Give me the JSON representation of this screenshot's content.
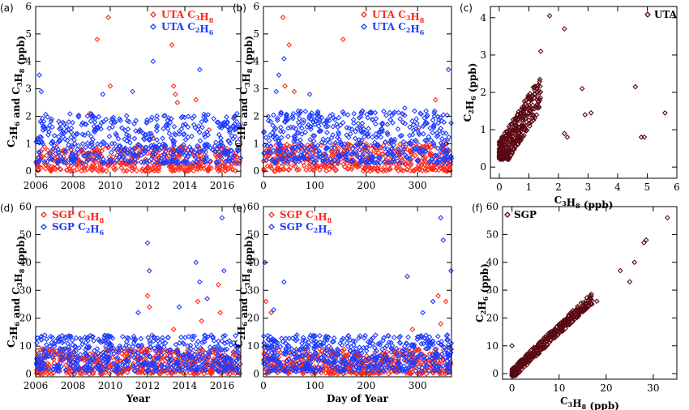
{
  "colors": {
    "c3h8": "#ff2a1a",
    "c2h6": "#1f3dff",
    "scatter": "#5a0a14",
    "axis": "#000000"
  },
  "chart_data": [
    {
      "panel": "(a)",
      "type": "scatter",
      "xlabel": "",
      "ylabel": "C2H6 and C3H8 (ppb)",
      "xlim": [
        2006,
        2017
      ],
      "ylim": [
        -0.2,
        6
      ],
      "xticks": [
        2006,
        2008,
        2010,
        2012,
        2014,
        2016
      ],
      "yticks": [
        0,
        1,
        2,
        3,
        4,
        5,
        6
      ],
      "legend": "top-right",
      "series": [
        {
          "name": "UTA C3H8",
          "color": "#ff2a1a",
          "ymin": 0,
          "ymax": 0.9,
          "count": 420,
          "outliers": [
            [
              2008.9,
              2.1
            ],
            [
              2009.3,
              4.8
            ],
            [
              2009.9,
              5.6
            ],
            [
              2010.0,
              3.1
            ],
            [
              2012.3,
              1.2
            ],
            [
              2013.3,
              4.6
            ],
            [
              2013.4,
              3.1
            ],
            [
              2013.5,
              2.8
            ],
            [
              2013.6,
              2.5
            ],
            [
              2014.6,
              2.6
            ],
            [
              2015.3,
              1.5
            ]
          ]
        },
        {
          "name": "UTA C2H6",
          "color": "#1f3dff",
          "ymin": 0.3,
          "ymax": 2.1,
          "count": 520,
          "outliers": [
            [
              2006.2,
              3.5
            ],
            [
              2006.3,
              2.9
            ],
            [
              2009.6,
              2.8
            ],
            [
              2011.2,
              2.9
            ],
            [
              2012.3,
              4.0
            ],
            [
              2014.8,
              3.7
            ],
            [
              2016.8,
              2.1
            ]
          ]
        }
      ]
    },
    {
      "panel": "(b)",
      "type": "scatter",
      "xlabel": "",
      "ylabel": "C2H6 and C3H8 (ppb)",
      "xlim": [
        0,
        366
      ],
      "ylim": [
        -0.2,
        6
      ],
      "xticks": [
        0,
        100,
        200,
        300
      ],
      "yticks": [
        0,
        1,
        2,
        3,
        4,
        5,
        6
      ],
      "legend": "top-right",
      "series": [
        {
          "name": "UTA C3H8",
          "color": "#ff2a1a",
          "ymin": 0,
          "ymax": 1.0,
          "count": 420,
          "outliers": [
            [
              38,
              5.6
            ],
            [
              50,
              4.6
            ],
            [
              155,
              4.8
            ],
            [
              42,
              3.1
            ],
            [
              60,
              2.9
            ],
            [
              270,
              2.1
            ],
            [
              335,
              2.6
            ],
            [
              300,
              1.5
            ]
          ]
        },
        {
          "name": "UTA C2H6",
          "color": "#1f3dff",
          "ymin": 0.3,
          "ymax": 2.2,
          "count": 520,
          "outliers": [
            [
              40,
              4.1
            ],
            [
              30,
              3.5
            ],
            [
              90,
              2.8
            ],
            [
              360,
              3.7
            ],
            [
              275,
              2.3
            ],
            [
              25,
              2.9
            ]
          ]
        }
      ]
    },
    {
      "panel": "(c)",
      "type": "scatter",
      "title": "UTA",
      "xlabel": "C3H8 (ppb)",
      "ylabel": "C2H6 (ppb)",
      "xlim": [
        -0.3,
        6
      ],
      "ylim": [
        -0.3,
        4.3
      ],
      "xticks": [
        0,
        1,
        2,
        3,
        4,
        5,
        6
      ],
      "yticks": [
        0,
        1,
        2,
        3,
        4
      ],
      "series": [
        {
          "name": "UTA",
          "color": "#5a0a14",
          "count": 360,
          "outliers": [
            [
              1.7,
              4.05
            ],
            [
              2.2,
              3.7
            ],
            [
              1.4,
              3.1
            ],
            [
              2.8,
              2.1
            ],
            [
              3.1,
              1.45
            ],
            [
              2.9,
              1.4
            ],
            [
              4.6,
              2.15
            ],
            [
              4.8,
              0.8
            ],
            [
              4.9,
              0.8
            ],
            [
              5.6,
              1.45
            ],
            [
              2.3,
              0.8
            ],
            [
              2.2,
              0.9
            ]
          ]
        }
      ]
    },
    {
      "panel": "(d)",
      "type": "scatter",
      "xlabel": "Year",
      "ylabel": "C2H6 and C3H8 (ppb)",
      "xlim": [
        2006,
        2017
      ],
      "ylim": [
        -1,
        60
      ],
      "xticks": [
        2006,
        2008,
        2010,
        2012,
        2014,
        2016
      ],
      "yticks": [
        0,
        10,
        20,
        30,
        40,
        50,
        60
      ],
      "legend": "top-left",
      "series": [
        {
          "name": "SGP C3H8",
          "color": "#ff2a1a",
          "ymin": 0,
          "ymax": 9,
          "count": 480,
          "outliers": [
            [
              2012.0,
              28
            ],
            [
              2012.1,
              24
            ],
            [
              2014.7,
              26
            ],
            [
              2014.9,
              19
            ],
            [
              2015.8,
              32
            ],
            [
              2015.9,
              22
            ],
            [
              2013.4,
              16
            ]
          ]
        },
        {
          "name": "SGP C2H6",
          "color": "#1f3dff",
          "ymin": 1,
          "ymax": 14,
          "count": 520,
          "outliers": [
            [
              2012.0,
              47
            ],
            [
              2012.1,
              37
            ],
            [
              2014.6,
              40
            ],
            [
              2014.8,
              33
            ],
            [
              2016.0,
              56
            ],
            [
              2016.1,
              37
            ],
            [
              2011.5,
              22
            ],
            [
              2015.2,
              27
            ],
            [
              2013.7,
              24
            ]
          ]
        }
      ]
    },
    {
      "panel": "(e)",
      "type": "scatter",
      "xlabel": "Day of Year",
      "ylabel": "C2H6 and C3H8 (ppb)",
      "xlim": [
        0,
        366
      ],
      "ylim": [
        -1,
        60
      ],
      "xticks": [
        0,
        100,
        200,
        300
      ],
      "yticks": [
        0,
        10,
        20,
        30,
        40,
        50,
        60
      ],
      "legend": "top-left",
      "series": [
        {
          "name": "SGP C3H8",
          "color": "#ff2a1a",
          "ymin": 0,
          "ymax": 9,
          "count": 480,
          "outliers": [
            [
              5,
              26
            ],
            [
              15,
              22
            ],
            [
              340,
              28
            ],
            [
              345,
              18
            ],
            [
              290,
              16
            ],
            [
              355,
              26
            ]
          ]
        },
        {
          "name": "SGP C2H6",
          "color": "#1f3dff",
          "ymin": 1,
          "ymax": 14,
          "count": 520,
          "outliers": [
            [
              3,
              40
            ],
            [
              40,
              33
            ],
            [
              345,
              56
            ],
            [
              350,
              48
            ],
            [
              365,
              37
            ],
            [
              280,
              35
            ],
            [
              310,
              22
            ],
            [
              330,
              26
            ],
            [
              20,
              23
            ]
          ]
        }
      ]
    },
    {
      "panel": "(f)",
      "type": "scatter",
      "title": "SGP",
      "xlabel": "C3H8 (ppb)",
      "ylabel": "C2H6 (ppb)",
      "xlim": [
        -2,
        35
      ],
      "ylim": [
        -2,
        60
      ],
      "xticks": [
        0,
        10,
        20,
        30
      ],
      "yticks": [
        0,
        10,
        20,
        30,
        40,
        50,
        60
      ],
      "series": [
        {
          "name": "SGP",
          "color": "#5a0a14",
          "count": 380,
          "outliers": [
            [
              33,
              56
            ],
            [
              28.5,
              48
            ],
            [
              28,
              47
            ],
            [
              26,
              40
            ],
            [
              23,
              37
            ],
            [
              25,
              33
            ],
            [
              18,
              26
            ],
            [
              17,
              25
            ],
            [
              0,
              10
            ]
          ]
        }
      ]
    }
  ]
}
